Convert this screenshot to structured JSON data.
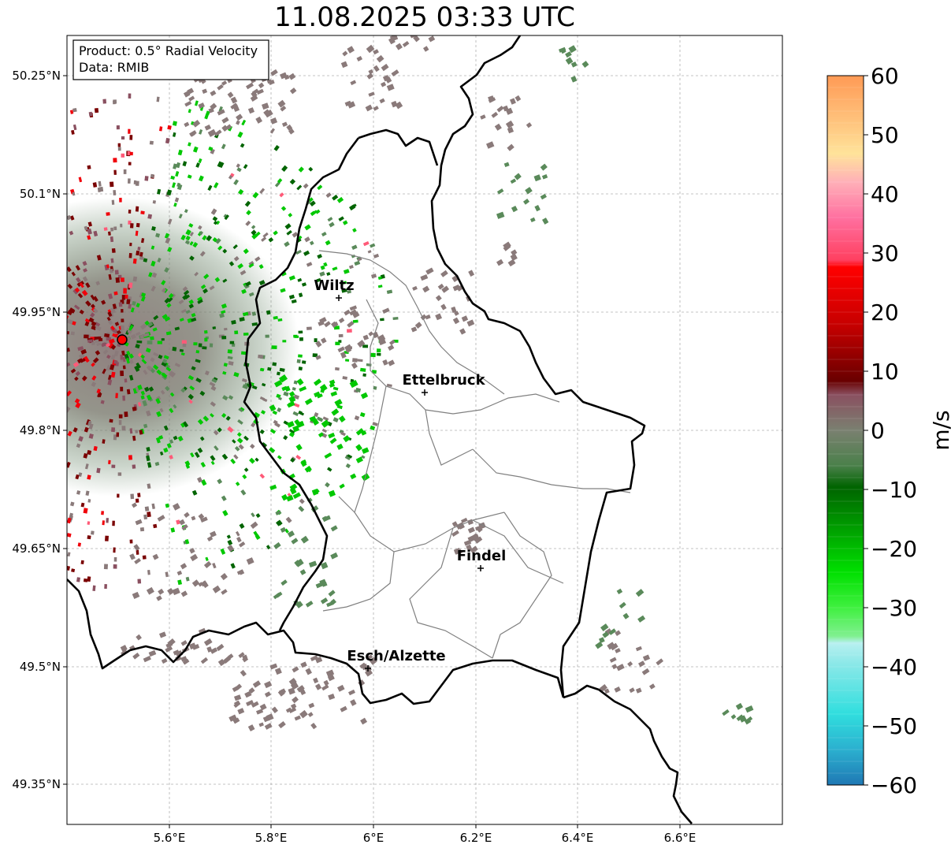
{
  "title": "11.08.2025 03:33 UTC",
  "info_box": {
    "product": "Product: 0.5° Radial Velocity",
    "source": "Data: RMIB"
  },
  "axes": {
    "lon_labels": [
      "5.6°E",
      "5.8°E",
      "6°E",
      "6.2°E",
      "6.4°E",
      "6.6°E"
    ],
    "lat_labels": [
      "50.25°N",
      "50.1°N",
      "49.95°N",
      "49.8°N",
      "49.65°N",
      "49.5°N",
      "49.35°N"
    ]
  },
  "cities": [
    {
      "name": "Wiltz"
    },
    {
      "name": "Ettelbruck"
    },
    {
      "name": "Findel"
    },
    {
      "name": "Esch/Alzette"
    }
  ],
  "colorbar": {
    "unit": "m/s",
    "min": -60,
    "max": 60,
    "tick_labels": [
      "60",
      "50",
      "40",
      "30",
      "20",
      "10",
      "0",
      "−10",
      "−20",
      "−30",
      "−40",
      "−50",
      "−60"
    ],
    "colors": {
      "orange": "#ff9a55",
      "light_orange": "#ffc27a",
      "pale_yellow": "#ffe39a",
      "pink": "#ff8ec8",
      "salmon": "#ff5a78",
      "red": "#f0000a",
      "dark_red": "#7a0000",
      "mauve": "#8a5060",
      "grey_brown": "#8a7a7a",
      "grey_green": "#5a8a5a",
      "dark_green": "#006400",
      "green": "#00c800",
      "light_green": "#80f090",
      "pale_cyan": "#b8f0f0",
      "cyan": "#30dede",
      "blue": "#1f78b4"
    }
  },
  "radar_site": {
    "color": "#ff0000"
  }
}
